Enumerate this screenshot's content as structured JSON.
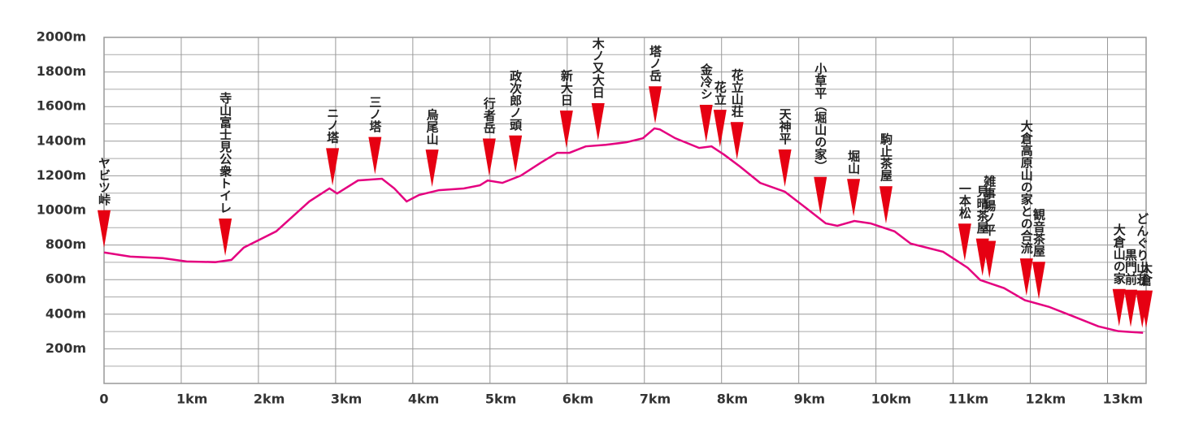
{
  "chart_data": {
    "type": "line",
    "x": [
      0,
      0.34,
      0.76,
      1.07,
      1.44,
      1.65,
      1.81,
      2.23,
      2.66,
      2.92,
      3.02,
      3.29,
      3.6,
      3.76,
      3.92,
      4.08,
      4.34,
      4.66,
      4.87,
      4.97,
      5.16,
      5.4,
      5.66,
      5.87,
      6.03,
      6.24,
      6.5,
      6.77,
      6.98,
      7.13,
      7.2,
      7.4,
      7.71,
      7.87,
      8.03,
      8.24,
      8.5,
      8.82,
      9.08,
      9.35,
      9.5,
      9.72,
      9.93,
      10.24,
      10.45,
      10.87,
      11.19,
      11.35,
      11.66,
      11.93,
      12.24,
      12.56,
      12.88,
      13.14,
      13.46
    ],
    "series": [
      {
        "color": "#e4007f",
        "values": [
          757,
          733,
          724,
          705,
          701,
          714,
          785,
          879,
          1052,
          1127,
          1098,
          1173,
          1183,
          1127,
          1052,
          1089,
          1117,
          1127,
          1145,
          1173,
          1159,
          1201,
          1276,
          1333,
          1333,
          1370,
          1379,
          1394,
          1417,
          1474,
          1468,
          1417,
          1361,
          1370,
          1323,
          1253,
          1159,
          1108,
          1019,
          925,
          911,
          939,
          925,
          879,
          808,
          761,
          668,
          598,
          551,
          481,
          443,
          387,
          330,
          302,
          293
        ]
      }
    ],
    "waypoints": [
      {
        "name": "ヤビツ峠",
        "x": 0
      },
      {
        "name": "寺山富士見公衆トイレ",
        "x": 1.57
      },
      {
        "name": "ニノ塔",
        "x": 2.96
      },
      {
        "name": "三ノ塔",
        "x": 3.51
      },
      {
        "name": "烏尾山",
        "x": 4.25
      },
      {
        "name": "行者岳",
        "x": 4.99
      },
      {
        "name": "政次郎ノ頭",
        "x": 5.33
      },
      {
        "name": "新大日",
        "x": 5.99
      },
      {
        "name": "木ノ又大日",
        "x": 6.4
      },
      {
        "name": "塔ノ岳",
        "x": 7.14
      },
      {
        "name": "金冷シ",
        "x": 7.8
      },
      {
        "name": "花立",
        "x": 7.98
      },
      {
        "name": "花立山荘",
        "x": 8.2
      },
      {
        "name": "天神平",
        "x": 8.82
      },
      {
        "name": "小草平（堀山の家）",
        "x": 9.28
      },
      {
        "name": "堀山",
        "x": 9.71
      },
      {
        "name": "駒止茶屋",
        "x": 10.13
      },
      {
        "name": "一本松",
        "x": 11.15
      },
      {
        "name": "見晴茶屋",
        "x": 11.38
      },
      {
        "name": "雑事場ノ平",
        "x": 11.47
      },
      {
        "name": "大倉高原山の家との合流",
        "x": 11.95
      },
      {
        "name": "観音茶屋",
        "x": 12.11
      },
      {
        "name": "大倉山の家",
        "x": 13.15
      },
      {
        "name": "黒門前",
        "x": 13.3
      },
      {
        "name": "どんぐり山荘",
        "x": 13.45
      },
      {
        "name": "大倉",
        "x": 13.5
      }
    ],
    "xlim": [
      0,
      13.5
    ],
    "ylim": [
      0,
      2000
    ],
    "xticks": [
      0,
      {
        "value": 1,
        "label": "1km"
      },
      {
        "value": 2,
        "label": "2km"
      },
      {
        "value": 3,
        "label": "3km"
      },
      {
        "value": 4,
        "label": "4km"
      },
      {
        "value": 5,
        "label": "5km"
      },
      {
        "value": 6,
        "label": "6km"
      },
      {
        "value": 7,
        "label": "7km"
      },
      {
        "value": 8,
        "label": "8km"
      },
      {
        "value": 9,
        "label": "9km"
      },
      {
        "value": 10,
        "label": "10km"
      },
      {
        "value": 11,
        "label": "11km"
      },
      {
        "value": 12,
        "label": "12km"
      },
      {
        "value": 13,
        "label": "13km"
      }
    ],
    "yticks": [
      {
        "value": 200,
        "label": "200m"
      },
      {
        "value": 400,
        "label": "400m"
      },
      {
        "value": 600,
        "label": "600m"
      },
      {
        "value": 800,
        "label": "800m"
      },
      {
        "value": 1000,
        "label": "1000m"
      },
      {
        "value": 1200,
        "label": "1200m"
      },
      {
        "value": 1400,
        "label": "1400m"
      },
      {
        "value": 1600,
        "label": "1600m"
      },
      {
        "value": 1800,
        "label": "1800m"
      },
      {
        "value": 2000,
        "label": "2000m"
      }
    ],
    "grid": true,
    "marker_color": "#e60012"
  }
}
